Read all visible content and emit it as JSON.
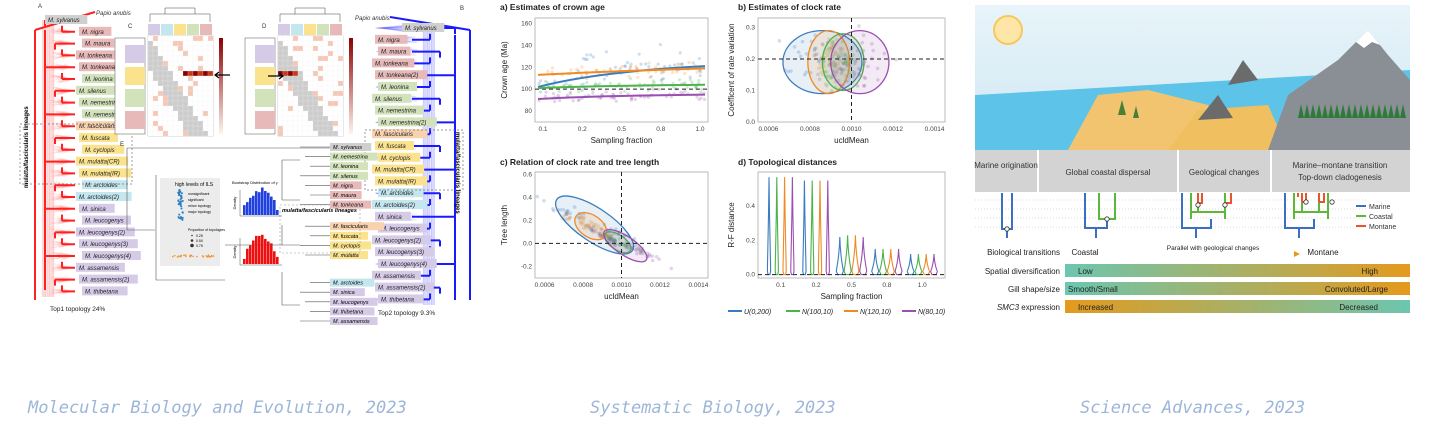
{
  "captions": [
    "Molecular Biology and Evolution, 2023",
    "Systematic Biology, 2023",
    "Science Advances, 2023"
  ],
  "figure1": {
    "panel_letters": [
      "A",
      "B",
      "C",
      "D",
      "E",
      "F"
    ],
    "outgroup": "Papio anubis",
    "species_top1": [
      {
        "name": "M. sylvanus",
        "group": "gray"
      },
      {
        "name": "M. nigra",
        "group": "pink"
      },
      {
        "name": "M. maura",
        "group": "pink"
      },
      {
        "name": "M. tonkeana",
        "group": "pink"
      },
      {
        "name": "M. tonkeana(2)",
        "group": "pink"
      },
      {
        "name": "M. leonina",
        "group": "green"
      },
      {
        "name": "M. silenus",
        "group": "green"
      },
      {
        "name": "M. nemestrina",
        "group": "green"
      },
      {
        "name": "M. nemestrina(2)",
        "group": "green"
      },
      {
        "name": "M. fascicularis",
        "group": "orange"
      },
      {
        "name": "M. fuscata",
        "group": "yellow"
      },
      {
        "name": "M. cyclopis",
        "group": "yellow"
      },
      {
        "name": "M. mulatta(CR)",
        "group": "yellow"
      },
      {
        "name": "M. mulatta(IR)",
        "group": "yellow"
      },
      {
        "name": "M. arctoides",
        "group": "cyan"
      },
      {
        "name": "M. arctoides(2)",
        "group": "cyan"
      },
      {
        "name": "M. sinica",
        "group": "purple"
      },
      {
        "name": "M. leucogenys",
        "group": "purple"
      },
      {
        "name": "M. leucogenys(2)",
        "group": "purple"
      },
      {
        "name": "M. leucogenys(3)",
        "group": "purple"
      },
      {
        "name": "M. leucogenys(4)",
        "group": "purple"
      },
      {
        "name": "M. assamensis",
        "group": "purple"
      },
      {
        "name": "M. assamensis(2)",
        "group": "purple"
      },
      {
        "name": "M. thibetana",
        "group": "purple"
      }
    ],
    "species_e": [
      {
        "name": "M. sylvanus",
        "group": "gray"
      },
      {
        "name": "M. nemestrina",
        "group": "green"
      },
      {
        "name": "M. leonina",
        "group": "green"
      },
      {
        "name": "M. silenus",
        "group": "green"
      },
      {
        "name": "M. nigra",
        "group": "pink"
      },
      {
        "name": "M. maura",
        "group": "pink"
      },
      {
        "name": "M. tonkeana",
        "group": "pink"
      },
      {
        "name": "M. fascicularis",
        "group": "orange"
      },
      {
        "name": "M. fuscata",
        "group": "yellow"
      },
      {
        "name": "M. cyclopis",
        "group": "yellow"
      },
      {
        "name": "M. mulatta",
        "group": "yellow"
      },
      {
        "name": "M. arctoides",
        "group": "cyan"
      },
      {
        "name": "M. sinica",
        "group": "purple"
      },
      {
        "name": "M. leucogenys",
        "group": "purple"
      },
      {
        "name": "M. thibetana",
        "group": "purple"
      },
      {
        "name": "M. assamensis",
        "group": "purple"
      }
    ],
    "lineage_label": "mulatta/fascicularis lineages",
    "top1_caption": "Top1 topology  24%",
    "top2_caption": "Top2 topology  9.3%",
    "inset_title": "high levels of ILS",
    "inset_legend": [
      "nonsignificant",
      "significant",
      "minor topology",
      "major topology",
      "Proportion of topologies",
      "0.25",
      "0.50",
      "0.75"
    ],
    "hist_title": "Bootstrap Distribution of γ",
    "hist_ylabel": "Density",
    "group_colors": {
      "gray": "#cfcfcf",
      "pink": "#e7b9b9",
      "green": "#d2e3bb",
      "orange": "#f8d1ae",
      "yellow": "#fbe38d",
      "cyan": "#c3e6ef",
      "purple": "#d6cbe7"
    }
  },
  "figure2": {
    "legend": [
      {
        "label": "U(0,200)",
        "color": "#3a7dbf"
      },
      {
        "label": "N(100,10)",
        "color": "#4bb34b"
      },
      {
        "label": "N(120,10)",
        "color": "#f08a24"
      },
      {
        "label": "N(80,10)",
        "color": "#9b4fb0"
      }
    ]
  },
  "chart_data": [
    {
      "type": "scatter",
      "title": "a) Estimates of crown age",
      "xlabel": "Sampling fraction",
      "ylabel": "Crown age (Ma)",
      "x_categories": [
        "0.1",
        "0.2",
        "0.5",
        "0.8",
        "1.0"
      ],
      "yticks": [
        80,
        100,
        120,
        140,
        160
      ],
      "ylim": [
        70,
        165
      ],
      "reference_y": 100,
      "series": [
        {
          "name": "U(0,200)",
          "trend_start": 102,
          "trend_mid": 116,
          "trend_end": 121,
          "spread": 20
        },
        {
          "name": "N(100,10)",
          "trend_start": 101,
          "trend_mid": 103,
          "trend_end": 104,
          "spread": 6
        },
        {
          "name": "N(120,10)",
          "trend_start": 113,
          "trend_mid": 116,
          "trend_end": 119,
          "spread": 6
        },
        {
          "name": "N(80,10)",
          "trend_start": 91,
          "trend_mid": 94,
          "trend_end": 95,
          "spread": 6
        }
      ]
    },
    {
      "type": "scatter",
      "title": "b) Estimates of clock rate",
      "xlabel": "ucldMean",
      "ylabel": "Coefficent of rate variation",
      "xticks": [
        "0.0006",
        "0.0008",
        "0.0010",
        "0.0012",
        "0.0014"
      ],
      "xlim": [
        0.00055,
        0.00145
      ],
      "yticks": [
        "0.0",
        "0.1",
        "0.2",
        "0.3"
      ],
      "ylim": [
        0,
        0.33
      ],
      "reference_x": 0.001,
      "reference_y": 0.2,
      "ellipses": [
        {
          "name": "U(0,200)",
          "cx": 0.00086,
          "cy": 0.19,
          "rx": 0.00019,
          "ry": 0.1
        },
        {
          "name": "N(120,10)",
          "cx": 0.00089,
          "cy": 0.19,
          "rx": 0.0001,
          "ry": 0.1
        },
        {
          "name": "N(100,10)",
          "cx": 0.00096,
          "cy": 0.19,
          "rx": 0.0001,
          "ry": 0.09
        },
        {
          "name": "N(80,10)",
          "cx": 0.00104,
          "cy": 0.19,
          "rx": 0.00014,
          "ry": 0.1
        }
      ]
    },
    {
      "type": "scatter",
      "title": "c) Relation of clock rate and tree length",
      "xlabel": "ucldMean",
      "ylabel": "Tree length",
      "xticks": [
        "0.0006",
        "0.0008",
        "0.0010",
        "0.0012",
        "0.0014"
      ],
      "xlim": [
        0.00055,
        0.00145
      ],
      "yticks": [
        "-0.2",
        "0.0",
        "0.2",
        "0.4",
        "0.6"
      ],
      "ylim": [
        -0.3,
        0.62
      ],
      "reference_x": 0.001,
      "reference_y": 0,
      "ellipses": [
        {
          "name": "U(0,200)",
          "cx": 0.00086,
          "cy": 0.16,
          "major": 0.36,
          "minor": 0.09
        },
        {
          "name": "N(120,10)",
          "cx": 0.00084,
          "cy": 0.15,
          "major": 0.14,
          "minor": 0.06
        },
        {
          "name": "N(100,10)",
          "cx": 0.00098,
          "cy": 0.01,
          "major": 0.12,
          "minor": 0.04
        },
        {
          "name": "N(80,10)",
          "cx": 0.00102,
          "cy": -0.02,
          "major": 0.2,
          "minor": 0.05
        }
      ]
    },
    {
      "type": "violin",
      "title": "d) Topological distances",
      "xlabel": "Sampling fraction",
      "ylabel": "R-F distance",
      "x_categories": [
        "0.1",
        "0.2",
        "0.5",
        "0.8",
        "1.0"
      ],
      "yticks": [
        "0.0",
        "0.2",
        "0.4"
      ],
      "ylim": [
        -0.02,
        0.6
      ],
      "reference_y": 0,
      "max_values": [
        [
          0.57,
          0.57,
          0.57,
          0.57
        ],
        [
          0.55,
          0.55,
          0.55,
          0.55
        ],
        [
          0.22,
          0.23,
          0.23,
          0.22
        ],
        [
          0.15,
          0.15,
          0.15,
          0.15
        ],
        [
          0.12,
          0.12,
          0.12,
          0.12
        ]
      ]
    }
  ],
  "figure3": {
    "stages": [
      "Marine origination",
      "Global coastal dispersal",
      "Geological changes",
      "Marine–montane transition",
      "Top-down cladogenesis"
    ],
    "tree_legend": [
      {
        "label": "Marine",
        "color": "#3b6fc4"
      },
      {
        "label": "Coastal",
        "color": "#5db83a"
      },
      {
        "label": "Montane",
        "color": "#e8542b"
      }
    ],
    "rows": [
      {
        "label": "Biological transitions",
        "left": "Coastal",
        "middle": "Parallel with geological changes",
        "right": "Montane"
      },
      {
        "label": "Spatial diversification",
        "left": "Low",
        "right": "High"
      },
      {
        "label": "Gill shape/size",
        "left": "Smooth/Small",
        "right": "Convoluted/Large"
      },
      {
        "label_italic": "SMC3",
        "label": " expression",
        "left": "Increased",
        "right": "Decreased"
      }
    ],
    "gradient_colors": {
      "teal": "#6cc6b0",
      "amber": "#e49a1c"
    }
  }
}
